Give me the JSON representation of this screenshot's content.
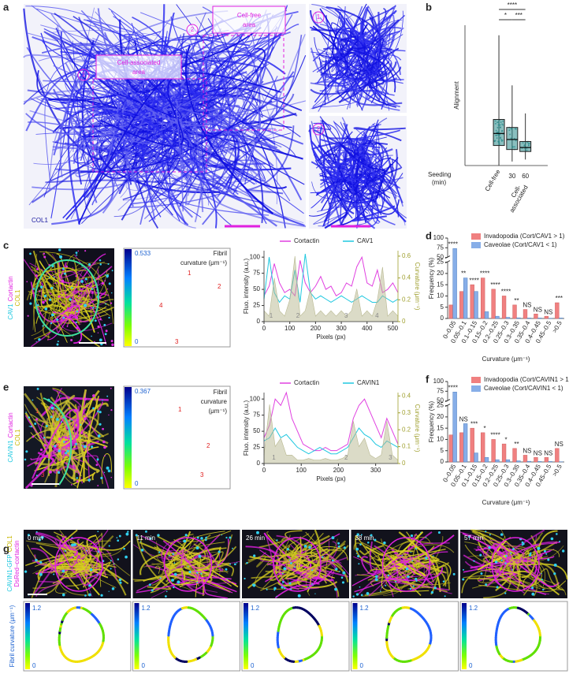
{
  "panels": {
    "letters": [
      "a",
      "b",
      "c",
      "d",
      "e",
      "f",
      "g"
    ],
    "a": {
      "cell_free": [
        "Cell-free",
        "area"
      ],
      "cell_assoc": [
        "Cell-associated",
        "area"
      ],
      "markers": [
        "1",
        "2",
        "1",
        "2"
      ],
      "stain": "COL1"
    },
    "c": {
      "stain": [
        "CAV1",
        "Cortactin",
        "COL1"
      ],
      "colorbar_title": [
        "Fibril",
        "curvature (μm⁻¹)"
      ],
      "colorbar_ticks": [
        "0.533",
        "0"
      ],
      "points": [
        "1",
        "2",
        "3",
        "4"
      ]
    },
    "e": {
      "stain": [
        "CAVIN1",
        "Cortactin",
        "COL1"
      ],
      "colorbar_title": [
        "Fibril",
        "curvature",
        "(μm⁻¹)"
      ],
      "colorbar_ticks": [
        "0.367",
        "0"
      ],
      "points": [
        "1",
        "2",
        "3"
      ]
    },
    "g": {
      "stain": [
        "CAVIN1-GFP",
        "COL1",
        "DsRed–cortactin"
      ],
      "times": [
        "0 min",
        "11 min",
        "26 min",
        "38 min",
        "57 min"
      ],
      "colorbar_ticks": [
        "1.2",
        "0"
      ],
      "axis_label": "Fibril curvature (μm⁻¹)"
    }
  },
  "chart_data": [
    {
      "type": "box",
      "y_label": "Alignment",
      "x_label": [
        "Seeding",
        "(min)"
      ],
      "categories": [
        "Cell-free",
        "30",
        "60"
      ],
      "group_label": [
        "Cell-",
        "associated"
      ],
      "boxes": [
        {
          "min": 0.0,
          "q1": 0.1,
          "median": 0.16,
          "q3": 0.23,
          "max": 0.65
        },
        {
          "min": 0.02,
          "q1": 0.08,
          "median": 0.13,
          "q3": 0.19,
          "max": 0.4
        },
        {
          "min": 0.03,
          "q1": 0.07,
          "median": 0.09,
          "q3": 0.12,
          "max": 0.26
        }
      ],
      "ylim": [
        0,
        0.7
      ],
      "color": "#2a8a8a",
      "significance": [
        "****",
        "*",
        "***"
      ]
    },
    {
      "type": "line",
      "x_label": "Pixels (px)",
      "y_label": "Fluo. intensity (a.u.)",
      "y2_label": "Curvature (μm⁻¹)",
      "x": [
        0,
        20,
        40,
        60,
        80,
        100,
        120,
        140,
        160,
        180,
        200,
        220,
        240,
        260,
        280,
        300,
        320,
        340,
        360,
        380,
        400,
        420,
        440,
        460,
        480,
        500,
        520
      ],
      "series": [
        {
          "name": "Cortactin",
          "color": "#e040e0",
          "values": [
            40,
            55,
            90,
            60,
            45,
            50,
            40,
            95,
            60,
            45,
            55,
            70,
            50,
            55,
            40,
            45,
            60,
            55,
            85,
            100,
            60,
            55,
            80,
            45,
            50,
            60,
            45
          ]
        },
        {
          "name": "CAV1",
          "color": "#20c8e0",
          "values": [
            35,
            100,
            45,
            30,
            40,
            35,
            80,
            30,
            105,
            45,
            35,
            40,
            35,
            30,
            35,
            40,
            35,
            30,
            35,
            40,
            35,
            30,
            30,
            40,
            35,
            30,
            35
          ]
        },
        {
          "color": "#b8b890",
          "axis": "y2",
          "fill": true,
          "values": [
            0.1,
            0.05,
            0.4,
            0.1,
            0.05,
            0.2,
            0.6,
            0.05,
            0.1,
            0.3,
            0.05,
            0.1,
            0.05,
            0.1,
            0.05,
            0.1,
            0.05,
            0.1,
            0.3,
            0.05,
            0.1,
            0.05,
            0.2,
            0.5,
            0.05,
            0.1,
            0.05
          ]
        }
      ],
      "xlim": [
        0,
        520
      ],
      "xticks": [
        0,
        100,
        200,
        300,
        400,
        500
      ],
      "ylim": [
        0,
        110
      ],
      "yticks": [
        0,
        25,
        50,
        75,
        100
      ],
      "y2lim": [
        0,
        0.65
      ],
      "y2ticks": [
        0,
        0.2,
        0.4,
        0.6
      ],
      "y2_color": "#a0a030",
      "segments": [
        "1",
        "2",
        "3",
        "4"
      ]
    },
    {
      "type": "bar",
      "x_label": "Curvature (μm⁻¹)",
      "y_label": "Frequency (%)",
      "categories": [
        "0–0.05",
        "0.05–0.1",
        "0.1–0.15",
        "0.15–0.2",
        "0.2–0.25",
        "0.25–0.3",
        "0.3–0.35",
        "0.35–0.4",
        "0.4–0.45",
        "0.45–0.5",
        ">0.5"
      ],
      "series": [
        {
          "name": "Invadopodia (Cort/CAV1 > 1)",
          "color": "#f08080",
          "values": [
            6,
            12,
            15,
            18,
            13,
            10,
            6,
            4,
            2,
            1,
            7
          ]
        },
        {
          "name": "Caveolae (Cort/CAV1 < 1)",
          "color": "#87aee8",
          "values": [
            73,
            18,
            12,
            3,
            1,
            0.5,
            0.3,
            0.2,
            0.2,
            0.1,
            0.2
          ]
        }
      ],
      "significance": [
        "****",
        "**",
        "****",
        "****",
        "****",
        "****",
        "**",
        "NS",
        "NS",
        "NS",
        "***"
      ],
      "ylim": [
        0,
        100
      ],
      "y_break": [
        25,
        50
      ],
      "yticks": [
        0,
        5,
        10,
        15,
        20,
        25,
        50,
        75,
        100
      ]
    },
    {
      "type": "line",
      "x_label": "Pixels (px)",
      "y_label": "Fluo. intensity (a.u.)",
      "y2_label": "Curvature (μm⁻¹)",
      "x": [
        0,
        15,
        30,
        45,
        60,
        75,
        90,
        105,
        120,
        135,
        150,
        165,
        180,
        195,
        210,
        225,
        240,
        255,
        270,
        285,
        300,
        315,
        330,
        345,
        360
      ],
      "series": [
        {
          "name": "Cortactin",
          "color": "#e040e0",
          "values": [
            40,
            60,
            100,
            90,
            110,
            70,
            50,
            30,
            25,
            20,
            20,
            25,
            20,
            20,
            25,
            30,
            70,
            90,
            100,
            80,
            60,
            40,
            70,
            50,
            30
          ]
        },
        {
          "name": "CAVIN1",
          "color": "#20c8e0",
          "values": [
            35,
            40,
            55,
            40,
            45,
            35,
            25,
            20,
            15,
            20,
            25,
            20,
            15,
            15,
            20,
            25,
            40,
            55,
            45,
            40,
            30,
            25,
            35,
            30,
            25
          ]
        },
        {
          "color": "#b8b890",
          "axis": "y2",
          "fill": true,
          "values": [
            0.05,
            0.35,
            0.1,
            0.15,
            0.05,
            0.05,
            0.02,
            0.02,
            0.03,
            0.02,
            0.02,
            0.03,
            0.02,
            0.02,
            0.03,
            0.05,
            0.25,
            0.1,
            0.15,
            0.05,
            0.03,
            0.05,
            0.25,
            0.05,
            0.02
          ]
        }
      ],
      "xlim": [
        0,
        360
      ],
      "xticks": [
        0,
        100,
        200,
        300
      ],
      "ylim": [
        0,
        110
      ],
      "yticks": [
        0,
        25,
        50,
        75,
        100
      ],
      "y2lim": [
        0,
        0.42
      ],
      "y2ticks": [
        0,
        0.1,
        0.2,
        0.3,
        0.4
      ],
      "y2_color": "#a0a030",
      "segments": [
        "1",
        "2",
        "3"
      ]
    },
    {
      "type": "bar",
      "x_label": "Curvature (μm⁻¹)",
      "y_label": "Frequency (%)",
      "categories": [
        "0–0.05",
        "0.05–0.1",
        "0.1–0.15",
        "0.15–0.2",
        "0.2–0.25",
        "0.25–0.3",
        "0.3–0.35",
        "0.35–0.4",
        "0.4–0.45",
        "0.45–0.5",
        ">0.5"
      ],
      "series": [
        {
          "name": "Invadopodia (Cort/CAVIN1 > 1)",
          "color": "#f08080",
          "values": [
            12,
            13,
            15,
            13,
            10,
            8,
            6,
            3,
            2,
            2,
            6
          ]
        },
        {
          "name": "Caveolae (Cort/CAVIN1 < 1)",
          "color": "#87aee8",
          "values": [
            73,
            17,
            4,
            2,
            1,
            1,
            0.5,
            0.3,
            0.2,
            0.2,
            0.1
          ]
        }
      ],
      "significance": [
        "****",
        "NS",
        "***",
        "*",
        "****",
        "*",
        "**",
        "NS",
        "NS",
        "NS",
        "NS"
      ],
      "ylim": [
        0,
        100
      ],
      "y_break": [
        25,
        50
      ],
      "yticks": [
        0,
        5,
        10,
        15,
        20,
        25,
        50,
        75,
        100
      ]
    }
  ]
}
